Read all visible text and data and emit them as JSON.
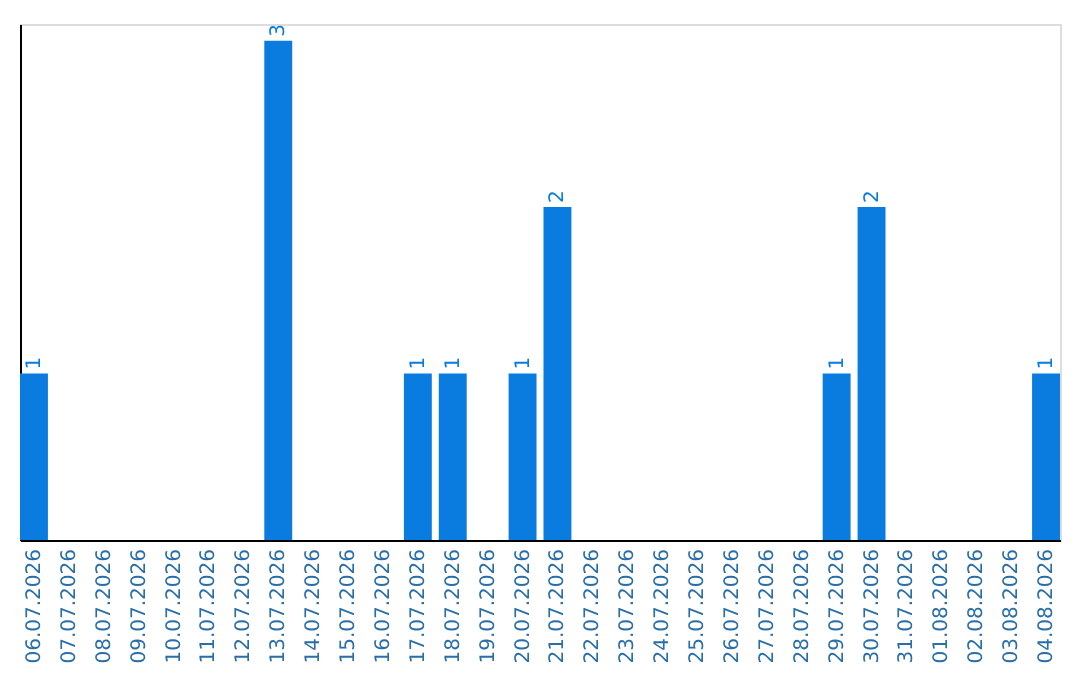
{
  "chart_data": {
    "type": "bar",
    "categories": [
      "06.07.2026",
      "07.07.2026",
      "08.07.2026",
      "09.07.2026",
      "10.07.2026",
      "11.07.2026",
      "12.07.2026",
      "13.07.2026",
      "14.07.2026",
      "15.07.2026",
      "16.07.2026",
      "17.07.2026",
      "18.07.2026",
      "19.07.2026",
      "20.07.2026",
      "21.07.2026",
      "22.07.2026",
      "23.07.2026",
      "24.07.2026",
      "25.07.2026",
      "26.07.2026",
      "27.07.2026",
      "28.07.2026",
      "29.07.2026",
      "30.07.2026",
      "31.07.2026",
      "01.08.2026",
      "02.08.2026",
      "03.08.2026",
      "04.08.2026"
    ],
    "values": [
      1,
      0,
      0,
      0,
      0,
      0,
      0,
      3,
      0,
      0,
      0,
      1,
      1,
      0,
      1,
      2,
      0,
      0,
      0,
      0,
      0,
      0,
      0,
      1,
      2,
      0,
      0,
      0,
      0,
      1
    ],
    "value_labels": [
      "1",
      null,
      null,
      null,
      null,
      null,
      null,
      "3",
      null,
      null,
      null,
      "1",
      "1",
      null,
      "1",
      "2",
      null,
      null,
      null,
      null,
      null,
      null,
      null,
      "1",
      "2",
      null,
      null,
      null,
      null,
      "1"
    ],
    "color": "#0a7ce0",
    "ylim": [
      0,
      3.1
    ],
    "tick_labels": "x",
    "grid": false
  }
}
